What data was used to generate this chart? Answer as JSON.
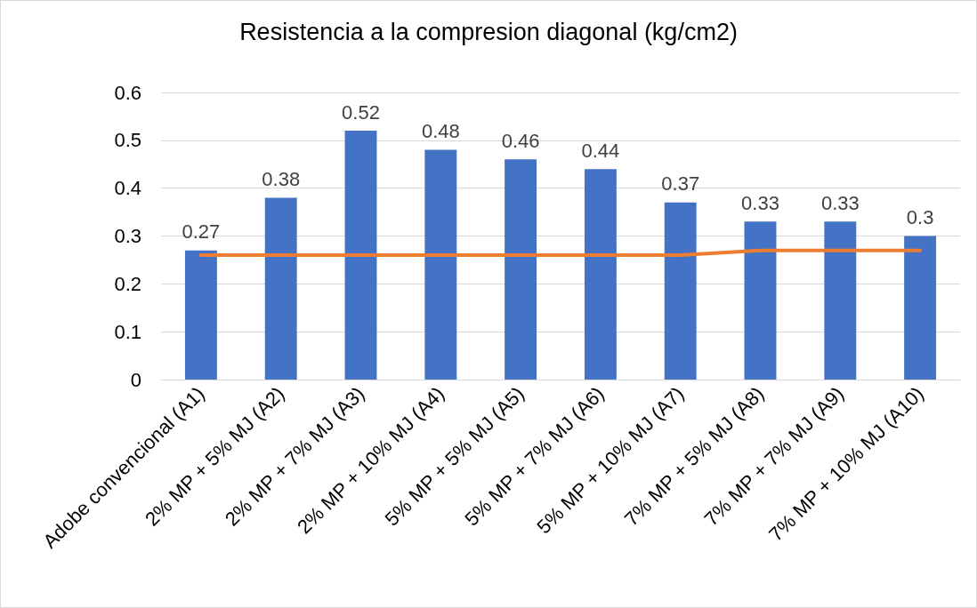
{
  "chart_data": {
    "type": "bar",
    "title": "Resistencia a la compresion diagonal (kg/cm2)",
    "categories": [
      "Adobe convencional (A1)",
      "2% MP + 5% MJ (A2)",
      "2% MP + 7% MJ (A3)",
      "2% MP + 10% MJ (A4)",
      "5% MP + 5% MJ (A5)",
      "5% MP + 7% MJ (A6)",
      "5% MP + 10% MJ (A7)",
      "7% MP + 5% MJ (A8)",
      "7% MP + 7% MJ (A9)",
      "7% MP + 10% MJ (A10)"
    ],
    "series": [
      {
        "color": "#4472c4",
        "values": [
          0.27,
          0.38,
          0.52,
          0.48,
          0.46,
          0.44,
          0.37,
          0.33,
          0.33,
          0.3
        ],
        "data_labels": true
      },
      {
        "type": "line",
        "color": "#ed7d31",
        "values": [
          0.26,
          0.26,
          0.26,
          0.26,
          0.26,
          0.26,
          0.26,
          0.27,
          0.27,
          0.27
        ],
        "marker": "none",
        "line_style": "solid"
      }
    ],
    "ylim": [
      0,
      0.6
    ],
    "yticks": [
      0,
      0.1,
      0.2,
      0.3,
      0.4,
      0.5,
      0.6
    ],
    "grid": "y"
  }
}
